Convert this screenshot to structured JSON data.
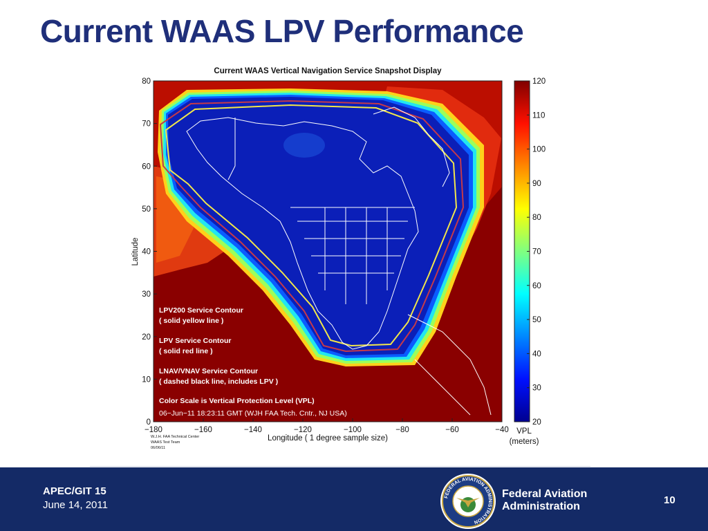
{
  "slide": {
    "title": "Current WAAS LPV Performance"
  },
  "chart_data": {
    "type": "heatmap",
    "title": "Current WAAS Vertical Navigation Service Snapshot Display",
    "xlabel": "Longitude    ( 1 degree sample size)",
    "ylabel": "Latitude",
    "xlim": [
      -180,
      -40
    ],
    "ylim": [
      0,
      80
    ],
    "x_ticks": [
      -180,
      -160,
      -140,
      -120,
      -100,
      -80,
      -60,
      -40
    ],
    "x_tick_labels": [
      "−180",
      "−160",
      "−140",
      "−120",
      "−100",
      "−80",
      "−60",
      "−40"
    ],
    "y_ticks": [
      0,
      10,
      20,
      30,
      40,
      50,
      60,
      70,
      80
    ],
    "colorbar": {
      "label_line1": "VPL",
      "label_line2": "(meters)",
      "range": [
        20,
        120
      ],
      "ticks": [
        20,
        30,
        40,
        50,
        60,
        70,
        80,
        90,
        100,
        110,
        120
      ]
    },
    "annotations": [
      "LPV200 Service Contour",
      "( solid yellow line )",
      "LPV Service Contour",
      "( solid red line )",
      "LNAV/VNAV Service Contour",
      "( dashed black line, includes LPV )",
      "Color Scale is Vertical Protection Level (VPL)",
      "06−Jun−11 18:23:11 GMT  (WJH FAA Tech. Cntr., NJ USA)"
    ],
    "credit": [
      "W.J.H. FAA Technical Center",
      "WAAS Test Team",
      "06/06/11"
    ],
    "contours": {
      "lpv200_color": "#f2e64a",
      "lpv_color": "#c43a4a",
      "coverage_color": "#0b1fb8"
    }
  },
  "footer": {
    "conference": "APEC/GIT 15",
    "date": "June 14, 2011",
    "agency_line1": "Federal Aviation",
    "agency_line2": "Administration",
    "page_number": "10",
    "logo": "faa-seal-icon",
    "logo_text": "FEDERAL AVIATION ADMINISTRATION"
  }
}
